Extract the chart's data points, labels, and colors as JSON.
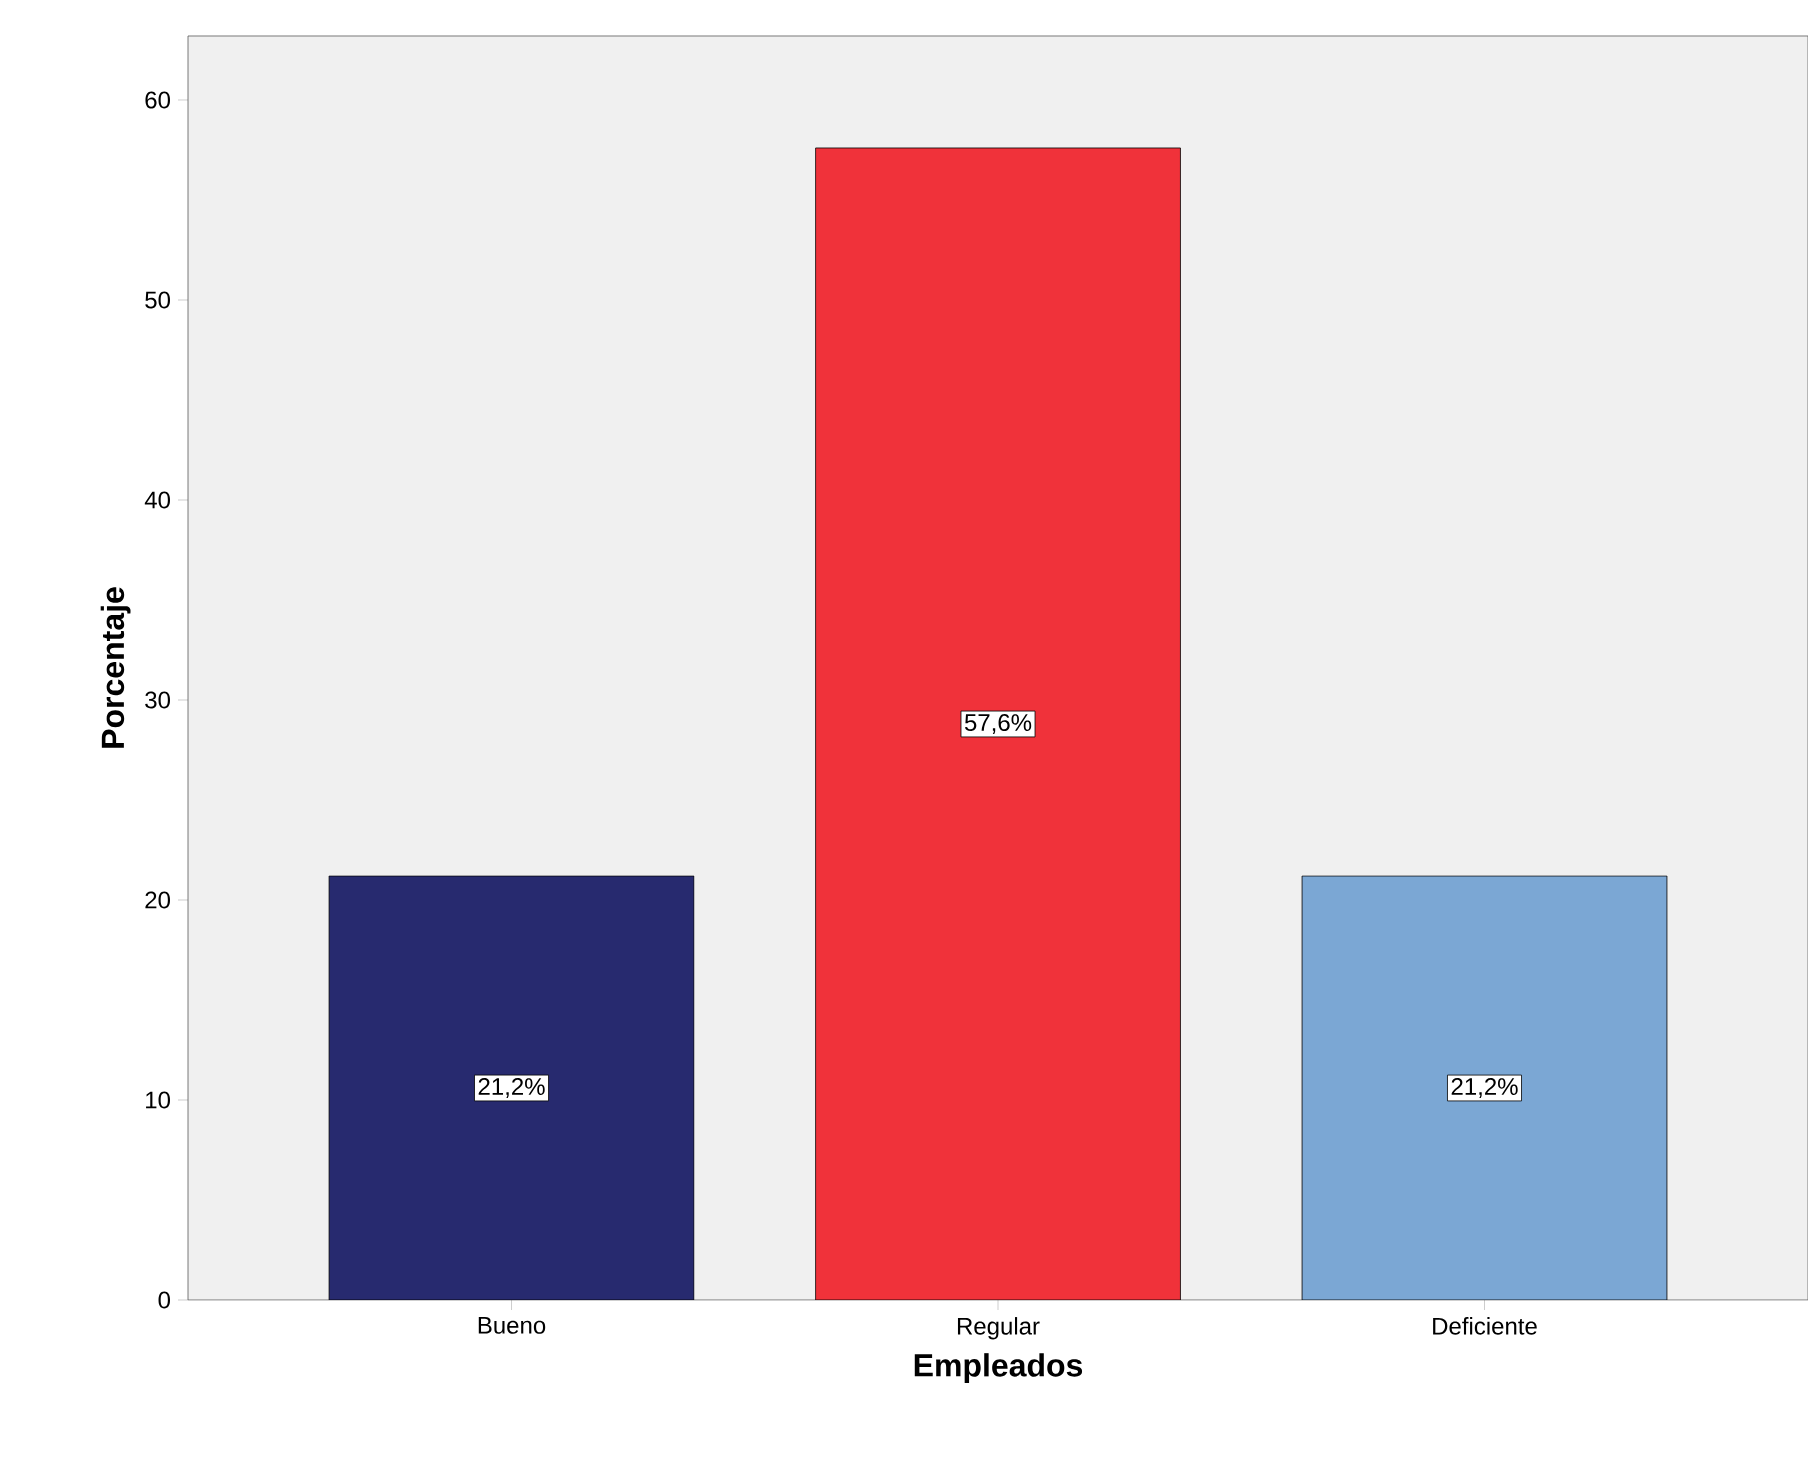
{
  "chart_data": {
    "type": "bar",
    "xlabel": "Empleados",
    "ylabel": "Porcentaje",
    "categories": [
      "Bueno",
      "Regular",
      "Deficiente"
    ],
    "values": [
      21.2,
      57.6,
      21.2
    ],
    "colors": [
      "#272a6f",
      "#f0323a",
      "#7ba7d4"
    ],
    "value_labels": [
      "21,2%",
      "57,6%",
      "21,2%"
    ],
    "ylim": [
      0,
      63.2
    ],
    "yticks": [
      0,
      10,
      20,
      30,
      40,
      50,
      60
    ],
    "grid": false
  }
}
